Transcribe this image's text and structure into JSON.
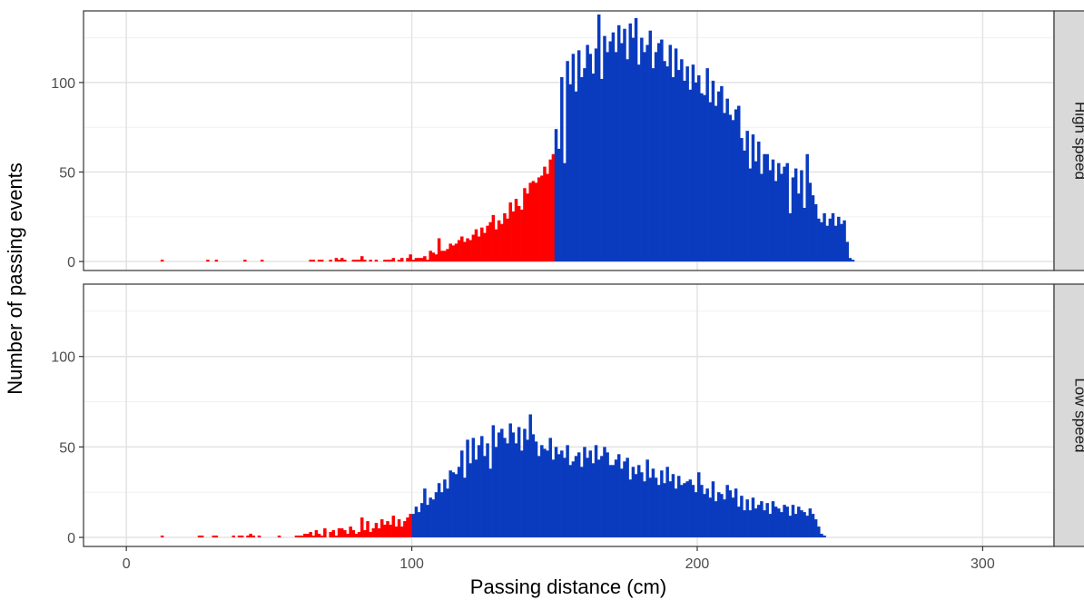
{
  "chart_data": {
    "type": "bar",
    "subtype": "faceted-histogram",
    "xlabel": "Passing distance (cm)",
    "ylabel": "Number of passing events",
    "xlim": [
      -15,
      325
    ],
    "ylim": [
      -5,
      140
    ],
    "x_ticks": [
      0,
      100,
      200,
      300
    ],
    "y_ticks": [
      0,
      50,
      100
    ],
    "grid": true,
    "bin_width_cm": 1,
    "colors": {
      "below_threshold": "#ff0000",
      "above_threshold": "#0a3bbf"
    },
    "panels": [
      {
        "label": "High speed",
        "threshold_cm": 150,
        "x_start_cm": 12,
        "counts": [
          1,
          0,
          0,
          0,
          0,
          0,
          0,
          0,
          0,
          0,
          0,
          0,
          0,
          0,
          0,
          0,
          1,
          0,
          0,
          1,
          0,
          0,
          0,
          0,
          0,
          0,
          0,
          0,
          0,
          1,
          0,
          0,
          0,
          0,
          0,
          1,
          0,
          0,
          0,
          0,
          0,
          0,
          0,
          0,
          0,
          0,
          0,
          0,
          0,
          0,
          0,
          0,
          1,
          1,
          0,
          1,
          1,
          0,
          0,
          1,
          0,
          2,
          1,
          2,
          1,
          0,
          0,
          1,
          1,
          1,
          3,
          1,
          0,
          1,
          0,
          1,
          0,
          0,
          1,
          1,
          1,
          2,
          0,
          1,
          2,
          0,
          2,
          4,
          1,
          2,
          2,
          2,
          3,
          1,
          6,
          5,
          4,
          13,
          6,
          6,
          7,
          10,
          9,
          10,
          12,
          14,
          11,
          13,
          12,
          15,
          18,
          14,
          19,
          16,
          20,
          22,
          26,
          18,
          23,
          21,
          27,
          24,
          33,
          28,
          35,
          31,
          29,
          41,
          38,
          44,
          45,
          44,
          47,
          48,
          53,
          49,
          57,
          60,
          74,
          63,
          103,
          55,
          112,
          99,
          116,
          95,
          118,
          103,
          108,
          121,
          116,
          105,
          119,
          138,
          102,
          126,
          117,
          123,
          128,
          117,
          132,
          122,
          130,
          113,
          133,
          125,
          136,
          110,
          125,
          117,
          121,
          129,
          108,
          117,
          122,
          124,
          112,
          109,
          121,
          103,
          119,
          107,
          113,
          101,
          109,
          96,
          110,
          100,
          104,
          94,
          93,
          108,
          89,
          101,
          87,
          95,
          98,
          83,
          91,
          82,
          79,
          85,
          87,
          69,
          62,
          73,
          52,
          71,
          56,
          67,
          49,
          60,
          60,
          51,
          57,
          45,
          55,
          49,
          53,
          55,
          27,
          47,
          52,
          38,
          51,
          30,
          60,
          44,
          37,
          32,
          24,
          22,
          27,
          20,
          24,
          27,
          20,
          25,
          21,
          23,
          11,
          2,
          1
        ],
        "bar_colors_by_threshold": true
      },
      {
        "label": "Low speed",
        "threshold_cm": 100,
        "x_start_cm": 12,
        "counts": [
          1,
          0,
          0,
          0,
          0,
          0,
          0,
          0,
          0,
          0,
          0,
          0,
          0,
          1,
          1,
          0,
          0,
          0,
          1,
          1,
          0,
          0,
          0,
          0,
          0,
          1,
          0,
          1,
          1,
          0,
          1,
          2,
          1,
          0,
          1,
          0,
          0,
          0,
          0,
          0,
          0,
          1,
          0,
          0,
          0,
          0,
          0,
          1,
          1,
          1,
          2,
          2,
          3,
          1,
          4,
          2,
          1,
          5,
          0,
          3,
          4,
          1,
          5,
          5,
          4,
          2,
          6,
          4,
          2,
          3,
          11,
          4,
          9,
          3,
          5,
          8,
          5,
          10,
          7,
          9,
          7,
          12,
          6,
          10,
          6,
          9,
          11,
          13,
          13,
          17,
          14,
          19,
          27,
          18,
          22,
          21,
          25,
          30,
          25,
          32,
          27,
          37,
          36,
          35,
          39,
          48,
          33,
          54,
          41,
          55,
          43,
          51,
          56,
          45,
          52,
          38,
          62,
          50,
          58,
          60,
          55,
          52,
          63,
          58,
          52,
          61,
          48,
          60,
          54,
          68,
          57,
          53,
          45,
          51,
          49,
          48,
          55,
          43,
          50,
          46,
          48,
          44,
          51,
          40,
          42,
          45,
          47,
          39,
          50,
          44,
          48,
          41,
          51,
          43,
          45,
          50,
          47,
          40,
          40,
          43,
          46,
          38,
          42,
          44,
          32,
          39,
          35,
          40,
          36,
          31,
          43,
          33,
          38,
          33,
          29,
          37,
          30,
          39,
          31,
          35,
          27,
          34,
          29,
          30,
          31,
          32,
          29,
          25,
          36,
          29,
          24,
          27,
          22,
          31,
          20,
          25,
          24,
          21,
          29,
          26,
          22,
          27,
          17,
          23,
          15,
          21,
          15,
          22,
          16,
          18,
          20,
          15,
          19,
          13,
          20,
          17,
          16,
          14,
          18,
          17,
          12,
          18,
          13,
          17,
          15,
          14,
          12,
          16,
          13,
          10,
          6,
          2,
          1
        ]
      }
    ]
  }
}
